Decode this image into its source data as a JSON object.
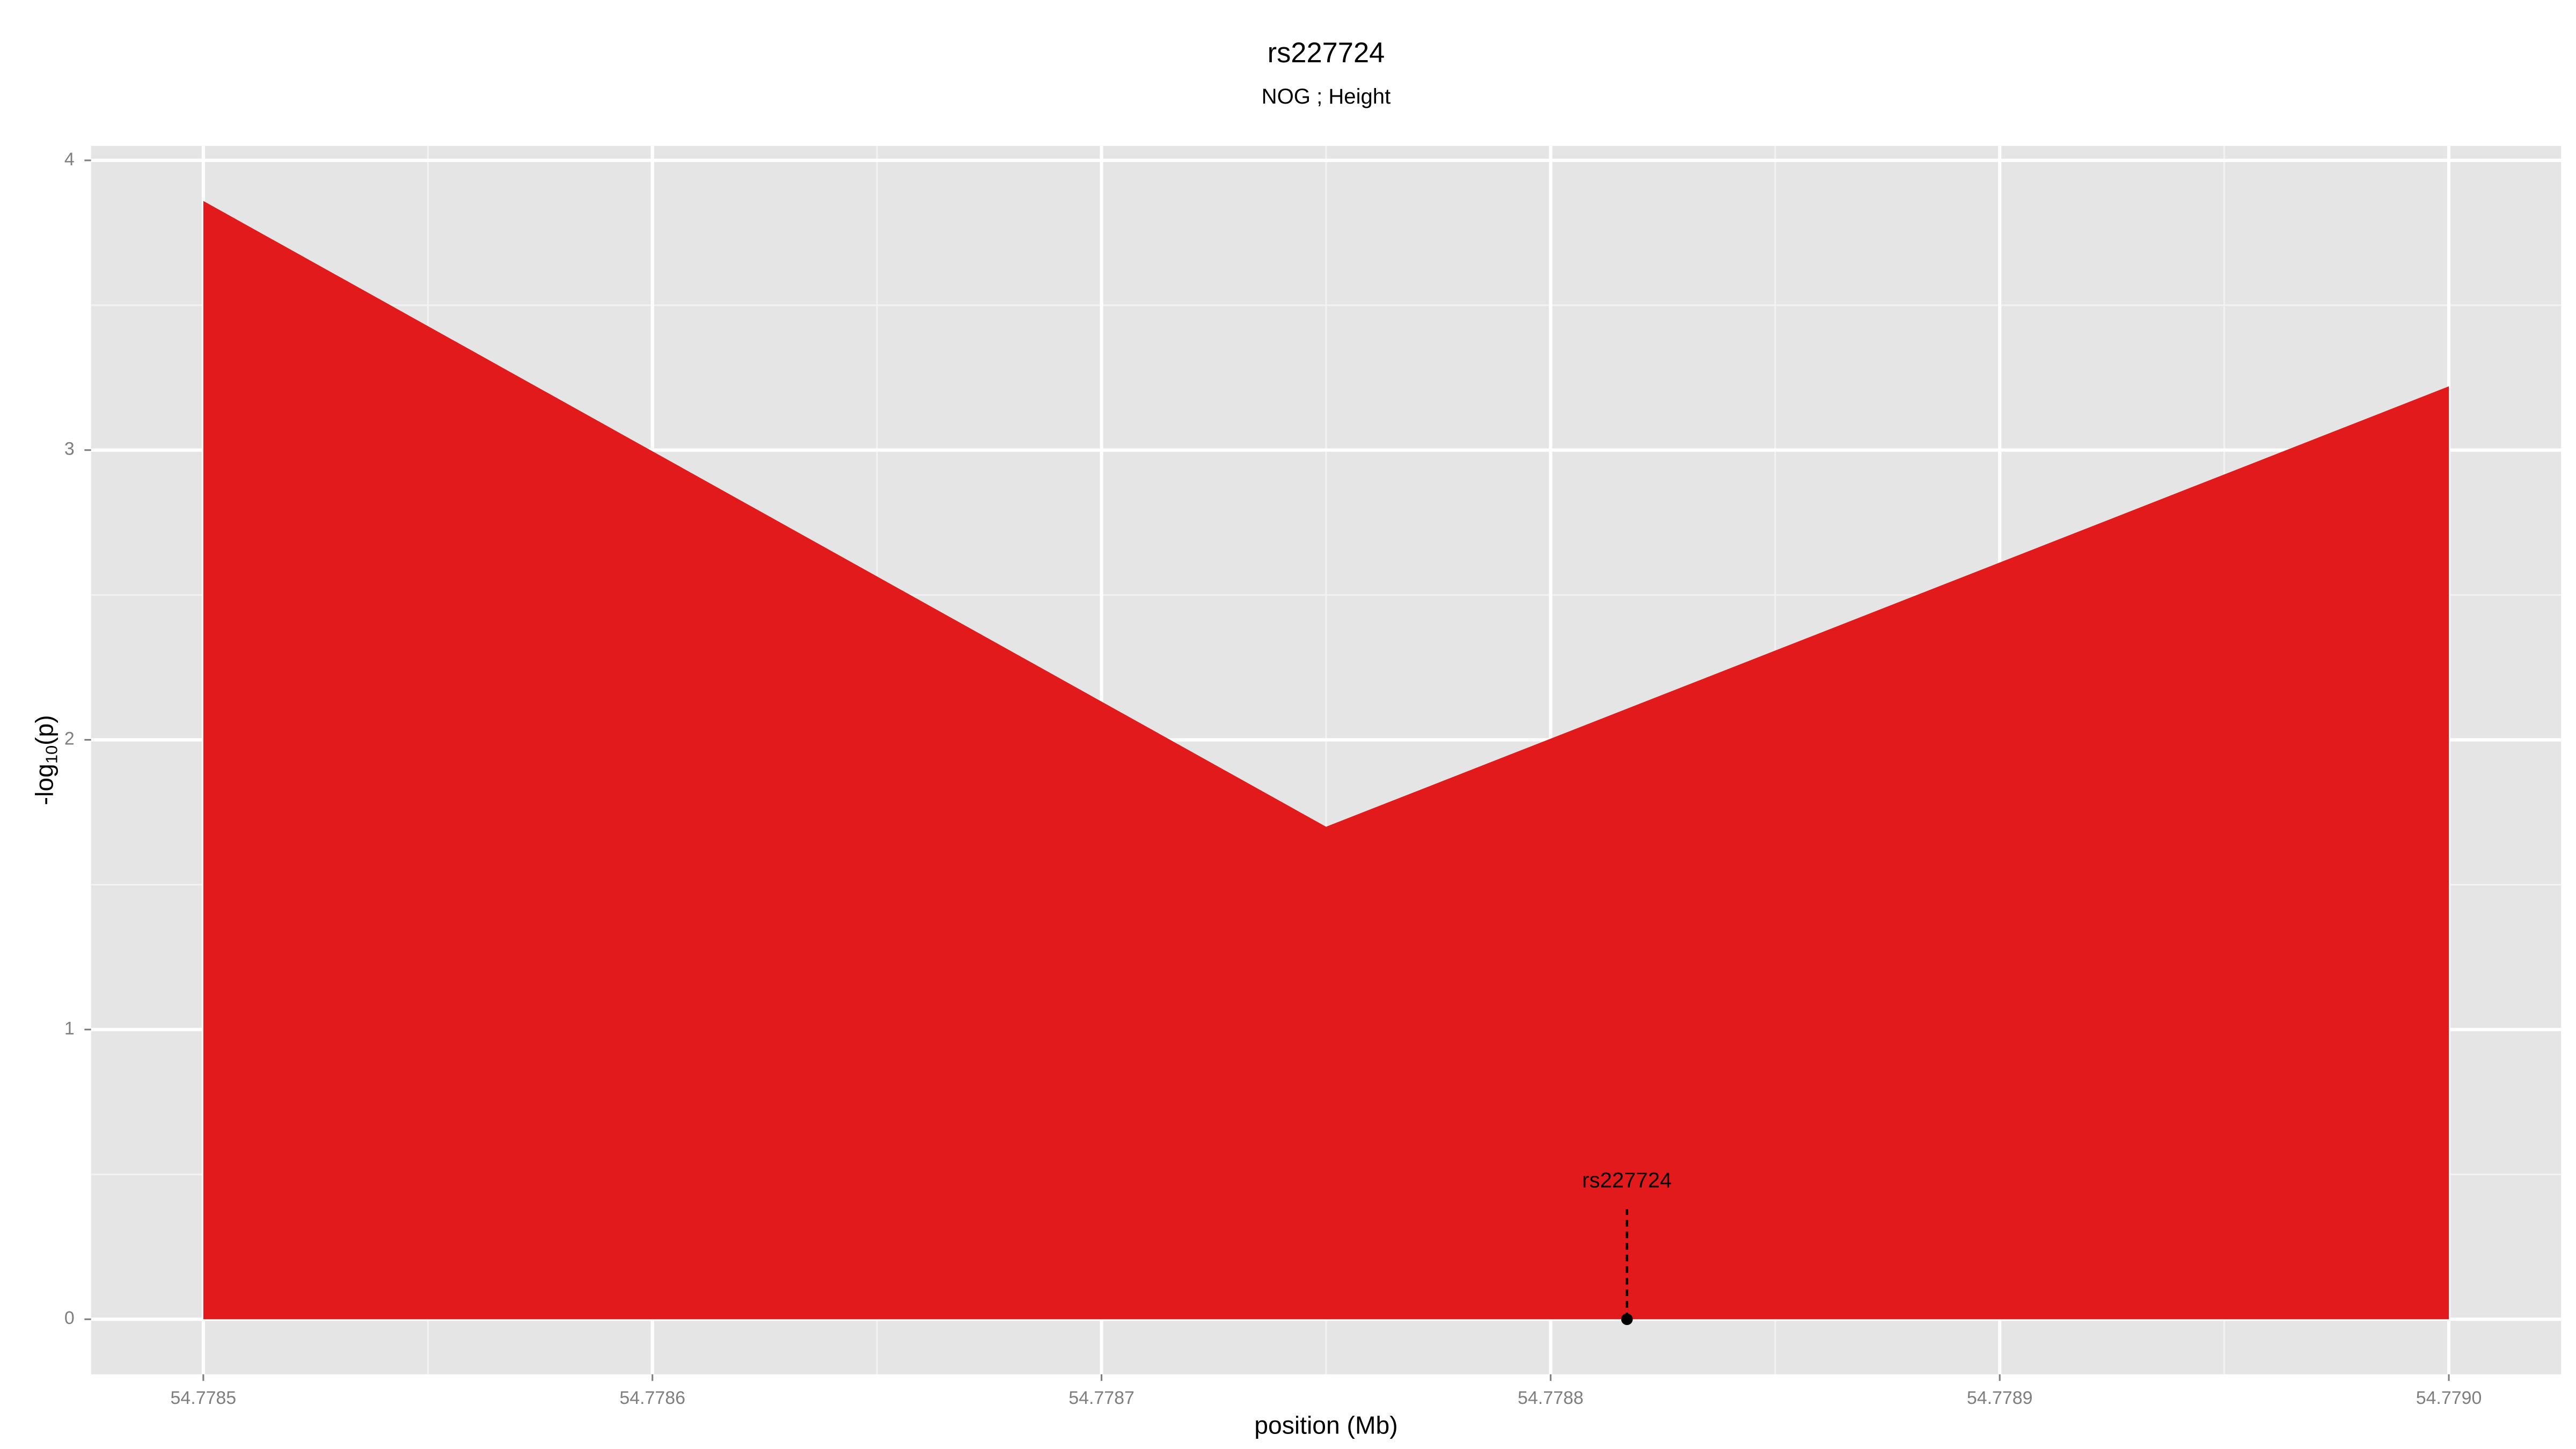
{
  "chart_data": {
    "type": "area",
    "title": "rs227724",
    "subtitle": "NOG ; Height",
    "xlabel": "position (Mb)",
    "ylabel": {
      "prefix": "-log",
      "sub": "10",
      "suffix": "(p)"
    },
    "x": [
      54.7785,
      54.77875,
      54.779
    ],
    "series": [
      {
        "color": "#e31a1c",
        "values": [
          3.86,
          1.7,
          3.22
        ]
      }
    ],
    "xlim": [
      54.778475,
      54.779025
    ],
    "ylim": [
      -0.19,
      4.05
    ],
    "xticks": [
      54.7785,
      54.7786,
      54.7787,
      54.7788,
      54.7789,
      {
        "value": 54.779,
        "label": "54.7790"
      }
    ],
    "yticks": [
      0,
      1,
      2,
      3,
      4
    ],
    "xminorticks": [
      54.77855,
      54.77865,
      54.77875,
      54.77885,
      54.77895
    ],
    "yminorticks": [
      0.5,
      1.5,
      2.5,
      3.5
    ],
    "grid": true,
    "annotation": {
      "label": "rs227724",
      "x": 54.778817,
      "y": 0,
      "line_top": 0.38,
      "label_y": 0.475
    }
  }
}
